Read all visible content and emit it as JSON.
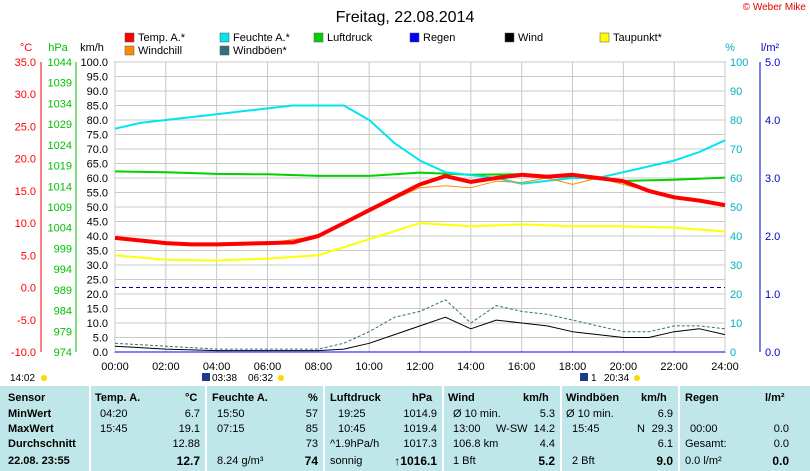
{
  "page": {
    "title": "Freitag, 22.08.2014",
    "copyright": "© Weber Mike",
    "time_marker_left": "14:02",
    "sunrise_time": "03:38",
    "sunrise_time2": "06:32",
    "sunset_marker": "1",
    "sunset_time": "20:34"
  },
  "colors": {
    "temp": "#ff0000",
    "feuchte": "#00e5ee",
    "luftdruck": "#00d000",
    "regen": "#0000ff",
    "wind": "#000000",
    "taupunkt": "#ffff00",
    "windchill": "#ff8c00",
    "windboeen": "#2f6f7f",
    "table_bg": "#bfe7ea"
  },
  "legend": [
    {
      "label": "Temp. A.*",
      "color": "#ff0000"
    },
    {
      "label": "Feuchte A.*",
      "color": "#00e5ee"
    },
    {
      "label": "Luftdruck",
      "color": "#00d000"
    },
    {
      "label": "Regen",
      "color": "#0000ff"
    },
    {
      "label": "Wind",
      "color": "#000000"
    },
    {
      "label": "Taupunkt*",
      "color": "#ffff00"
    },
    {
      "label": "Windchill",
      "color": "#ff8c00"
    },
    {
      "label": "Windböen*",
      "color": "#2f6f7f"
    }
  ],
  "chart_data": {
    "type": "line",
    "title": "Freitag, 22.08.2014",
    "x_ticks": [
      "00:00",
      "02:00",
      "04:00",
      "06:00",
      "08:00",
      "10:00",
      "12:00",
      "14:00",
      "16:00",
      "18:00",
      "20:00",
      "22:00",
      "24:00"
    ],
    "xlim": [
      0,
      24
    ],
    "axes": {
      "temp_c": {
        "unit": "°C",
        "ylim": [
          -10,
          35
        ],
        "ticks": [
          "35.0",
          "30.0",
          "25.0",
          "20.0",
          "15.0",
          "10.0",
          "5.0",
          "0.0",
          "-5.0",
          "-10.0"
        ]
      },
      "pressure_hpa": {
        "unit": "hPa",
        "ylim": [
          974,
          1044
        ],
        "ticks": [
          "1044",
          "1039",
          "1034",
          "1029",
          "1024",
          "1019",
          "1014",
          "1009",
          "1004",
          "999",
          "994",
          "989",
          "984",
          "979",
          "974"
        ]
      },
      "wind_kmh": {
        "unit": "km/h",
        "ylim": [
          0,
          100
        ],
        "ticks": [
          "100.0",
          "95.0",
          "90.0",
          "85.0",
          "80.0",
          "75.0",
          "70.0",
          "65.0",
          "60.0",
          "55.0",
          "50.0",
          "45.0",
          "40.0",
          "35.0",
          "30.0",
          "25.0",
          "20.0",
          "15.0",
          "10.0",
          "5.0",
          "0.0"
        ]
      },
      "humidity_pct": {
        "unit": "%",
        "ylim": [
          0,
          100
        ],
        "ticks": [
          "100",
          "90",
          "80",
          "70",
          "60",
          "50",
          "40",
          "30",
          "20",
          "10",
          "0"
        ]
      },
      "rain_lm2": {
        "unit": "l/m²",
        "ylim": [
          0,
          5
        ],
        "ticks": [
          "5.0",
          "4.0",
          "3.0",
          "2.0",
          "1.0",
          "0.0"
        ]
      }
    },
    "series": [
      {
        "name": "Temp. A.*",
        "axis": "temp_c",
        "x": [
          0,
          1,
          2,
          3,
          4,
          5,
          6,
          7,
          8,
          9,
          10,
          11,
          12,
          13,
          14,
          15,
          16,
          17,
          18,
          19,
          20,
          21,
          22,
          23,
          24
        ],
        "values": [
          7.7,
          7.3,
          6.9,
          6.7,
          6.7,
          6.8,
          6.9,
          7.0,
          8.0,
          10.0,
          12.0,
          14.0,
          16.0,
          17.3,
          16.4,
          17.0,
          17.5,
          17.2,
          17.5,
          17.0,
          16.5,
          15.0,
          14.0,
          13.5,
          12.8
        ]
      },
      {
        "name": "Feuchte A.*",
        "axis": "humidity_pct",
        "x": [
          0,
          1,
          2,
          3,
          4,
          5,
          6,
          7,
          8,
          9,
          10,
          11,
          12,
          13,
          14,
          15,
          16,
          17,
          18,
          19,
          20,
          21,
          22,
          23,
          24
        ],
        "values": [
          77,
          79,
          80,
          81,
          82,
          83,
          84,
          85,
          85,
          85,
          80,
          72,
          66,
          62,
          61,
          60,
          58,
          59,
          60,
          60,
          62,
          64,
          66,
          69,
          73
        ]
      },
      {
        "name": "Luftdruck",
        "axis": "pressure_hpa",
        "x": [
          0,
          2,
          4,
          6,
          8,
          10,
          12,
          14,
          16,
          18,
          20,
          22,
          24
        ],
        "values": [
          1017.6,
          1017.4,
          1017.0,
          1016.9,
          1016.5,
          1016.5,
          1017.3,
          1016.8,
          1016.9,
          1016.2,
          1015.3,
          1015.6,
          1016.1
        ]
      },
      {
        "name": "Taupunkt*",
        "axis": "temp_c",
        "x": [
          0,
          2,
          4,
          6,
          8,
          10,
          12,
          14,
          16,
          18,
          20,
          22,
          24
        ],
        "values": [
          5.0,
          4.3,
          4.2,
          4.5,
          5.0,
          7.5,
          10.0,
          9.5,
          9.8,
          9.5,
          9.5,
          9.3,
          8.7
        ]
      },
      {
        "name": "Windchill",
        "axis": "temp_c",
        "x": [
          0,
          2,
          4,
          6,
          8,
          10,
          12,
          13,
          14,
          15,
          16,
          17,
          18,
          19,
          20,
          22,
          24
        ],
        "values": [
          7.7,
          6.9,
          6.7,
          6.9,
          8.0,
          12.0,
          15.5,
          15.8,
          15.5,
          16.5,
          16.3,
          17.0,
          16.0,
          17.0,
          16.0,
          14.0,
          12.6
        ]
      },
      {
        "name": "Wind",
        "axis": "wind_kmh",
        "x": [
          0,
          2,
          4,
          6,
          8,
          9,
          10,
          11,
          12,
          13,
          14,
          15,
          16,
          17,
          18,
          19,
          20,
          21,
          22,
          23,
          24
        ],
        "values": [
          2,
          1,
          0.5,
          0.5,
          0.5,
          1,
          3,
          6,
          9,
          12,
          8,
          11,
          10,
          9,
          7,
          6,
          5,
          5,
          7,
          8,
          6
        ]
      },
      {
        "name": "Windböen*",
        "axis": "wind_kmh",
        "x": [
          0,
          2,
          4,
          6,
          8,
          9,
          10,
          11,
          12,
          13,
          14,
          15,
          16,
          17,
          18,
          19,
          20,
          21,
          22,
          23,
          24
        ],
        "values": [
          3,
          2,
          1,
          1,
          1,
          3,
          7,
          12,
          14,
          18,
          10,
          16,
          14,
          13,
          11,
          9,
          7,
          7,
          9,
          9,
          8
        ]
      },
      {
        "name": "Regen",
        "axis": "rain_lm2",
        "x": [
          0,
          24
        ],
        "values": [
          0,
          0
        ]
      }
    ],
    "reference_line": {
      "axis": "temp_c",
      "value": 0,
      "style": "dashed"
    }
  },
  "table": {
    "headers": [
      "Sensor",
      "Temp. A.",
      "°C",
      "Feuchte A.",
      "%",
      "Luftdruck",
      "hPa",
      "Wind",
      "km/h",
      "Windböen",
      "km/h",
      "Regen",
      "l/m²"
    ],
    "rows": {
      "min": {
        "label": "MinWert",
        "temp_time": "04:20",
        "temp": "6.7",
        "hum_time": "15:50",
        "hum": "57",
        "press_time": "19:25",
        "press": "1014.9",
        "wind_desc": "Ø 10 min.",
        "wind": "5.3",
        "gust_desc": "Ø 10 min.",
        "gust": "6.9",
        "rain_desc": "",
        "rain": ""
      },
      "max": {
        "label": "MaxWert",
        "temp_time": "15:45",
        "temp": "19.1",
        "hum_time": "07:15",
        "hum": "85",
        "press_time": "10:45",
        "press": "1019.4",
        "wind_desc": "13:00",
        "wind_dir": "W-SW",
        "wind": "14.2",
        "gust_desc": "15:45",
        "gust_dir": "N",
        "gust": "29.3",
        "rain_desc": "00:00",
        "rain": "0.0"
      },
      "avg": {
        "label": "Durchschnitt",
        "temp": "12.88",
        "hum": "73",
        "press_desc": "^1.9hPa/h",
        "press": "1017.3",
        "wind_desc": "106.8 km",
        "wind": "4.4",
        "gust": "6.1",
        "rain_desc": "Gesamt:",
        "rain": "0.0"
      },
      "now": {
        "label": "22.08. 23:55",
        "temp": "12.7",
        "hum_desc": "8.24 g/m³",
        "hum": "74",
        "press_desc": "sonnig",
        "press": "↑1016.1",
        "wind_desc": "1 Bft",
        "wind": "5.2",
        "gust_desc": "2 Bft",
        "gust": "9.0",
        "rain_desc": "0.0 l/m²",
        "rain": "0.0"
      }
    }
  }
}
